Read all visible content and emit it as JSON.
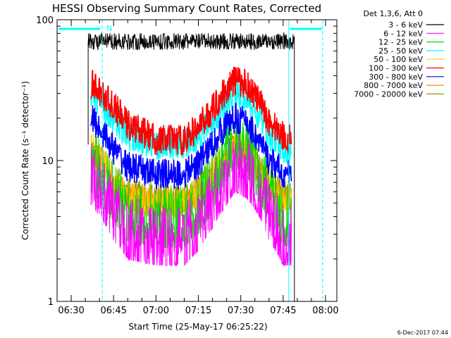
{
  "chart_data": {
    "type": "line",
    "title": "HESSI Observing Summary Count Rates, Corrected",
    "xlabel": "Start Time (25-May-17 06:25:22)",
    "ylabel": "Corrected Count Rate (s⁻¹ detector⁻¹)",
    "footer": "6-Dec-2017 07:44",
    "scale": "log",
    "x_range_minutes": [
      6.0,
      36.0
    ],
    "xlim": [
      "06:25",
      "08:04"
    ],
    "ylim": [
      1,
      100
    ],
    "x_ticks": [
      "06:30",
      "06:45",
      "07:00",
      "07:15",
      "07:30",
      "07:45",
      "08:00"
    ],
    "y_ticks": [
      "1",
      "10",
      "100"
    ],
    "legend": {
      "title": "Det 1,3,6, Att 0",
      "position": "right-outside-top"
    },
    "series": [
      {
        "name": "3 - 6 keV",
        "color": "#000000",
        "x": [
          "06:36",
          "07:49"
        ],
        "values": [
          70,
          70
        ]
      },
      {
        "name": "6 - 12 keV",
        "color": "#ff00ff",
        "x": [
          "06:37",
          "06:45",
          "06:50",
          "07:00",
          "07:10",
          "07:15",
          "07:20",
          "07:25",
          "07:28",
          "07:32",
          "07:36",
          "07:40",
          "07:45",
          "07:48"
        ],
        "values": [
          8,
          4.5,
          3.3,
          3,
          3,
          3.8,
          5.5,
          8,
          10,
          9,
          7,
          4.5,
          3,
          3
        ]
      },
      {
        "name": "12 - 25 keV",
        "color": "#00dd00",
        "x": [
          "06:37",
          "06:45",
          "06:50",
          "07:00",
          "07:10",
          "07:15",
          "07:20",
          "07:25",
          "07:28",
          "07:32",
          "07:36",
          "07:40",
          "07:45",
          "07:48"
        ],
        "values": [
          10,
          6,
          4.5,
          4,
          4,
          5,
          7,
          12,
          15,
          13,
          9,
          6,
          4.2,
          4
        ]
      },
      {
        "name": "25 - 50 keV",
        "color": "#00ffff",
        "x": [
          "06:37",
          "06:45",
          "06:50",
          "07:00",
          "07:10",
          "07:15",
          "07:20",
          "07:25",
          "07:28",
          "07:32",
          "07:36",
          "07:40",
          "07:45",
          "07:48"
        ],
        "values": [
          30,
          20,
          15,
          13,
          13,
          15,
          19,
          26,
          30,
          28,
          21,
          15,
          12,
          12
        ]
      },
      {
        "name": "50 - 100 keV",
        "color": "#ffcc00",
        "x": [
          "06:37",
          "06:45",
          "06:50",
          "07:00",
          "07:10",
          "07:15",
          "07:20",
          "07:25",
          "07:28",
          "07:32",
          "07:36",
          "07:40",
          "07:45",
          "07:48"
        ],
        "values": [
          13,
          7,
          5.5,
          5,
          5,
          5.8,
          8,
          11,
          13,
          12,
          9,
          6.5,
          5,
          5
        ]
      },
      {
        "name": "100 - 300 keV",
        "color": "#ff0000",
        "x": [
          "06:37",
          "06:45",
          "06:50",
          "07:00",
          "07:10",
          "07:15",
          "07:20",
          "07:25",
          "07:28",
          "07:32",
          "07:36",
          "07:40",
          "07:45",
          "07:48"
        ],
        "values": [
          35,
          24,
          18,
          14,
          14,
          17,
          23,
          32,
          37,
          35,
          27,
          19,
          15,
          14
        ]
      },
      {
        "name": "300 - 800 keV",
        "color": "#0000ff",
        "x": [
          "06:37",
          "06:45",
          "06:50",
          "07:00",
          "07:10",
          "07:15",
          "07:20",
          "07:25",
          "07:28",
          "07:32",
          "07:36",
          "07:40",
          "07:45",
          "07:48"
        ],
        "values": [
          20,
          12,
          9,
          8,
          8,
          9.5,
          13,
          18,
          20,
          19,
          14,
          10,
          8,
          8
        ]
      },
      {
        "name": "800 - 7000 keV",
        "color": "#ff8800",
        "x": [
          "06:37",
          "06:45",
          "06:50",
          "07:00",
          "07:10",
          "07:15",
          "07:20",
          "07:25",
          "07:28",
          "07:32",
          "07:36",
          "07:40",
          "07:45",
          "07:48"
        ],
        "values": [
          11,
          7,
          5.5,
          5,
          5,
          5.8,
          7.5,
          10,
          12,
          11,
          8.5,
          6.5,
          5.3,
          5
        ]
      },
      {
        "name": "7000 - 20000 keV",
        "color": "#999900",
        "x": [
          "06:37",
          "06:45",
          "06:50",
          "07:00",
          "07:10",
          "07:15",
          "07:20",
          "07:25",
          "07:28",
          "07:32",
          "07:36",
          "07:40",
          "07:45",
          "07:48"
        ],
        "values": [
          12,
          7.5,
          6,
          5.5,
          5.5,
          6.5,
          8.5,
          11,
          13,
          12,
          9,
          7,
          5.8,
          5.5
        ]
      }
    ],
    "annotations": {
      "night_label": "N",
      "vertical_lines": [
        {
          "time": "06:25",
          "style": "solid",
          "color": "#00ffff"
        },
        {
          "time": "06:41",
          "style": "dashed",
          "color": "#00ffff"
        },
        {
          "time": "07:47",
          "style": "solid",
          "color": "#00ffff"
        },
        {
          "time": "07:59",
          "style": "dashed",
          "color": "#00ffff"
        }
      ]
    }
  }
}
